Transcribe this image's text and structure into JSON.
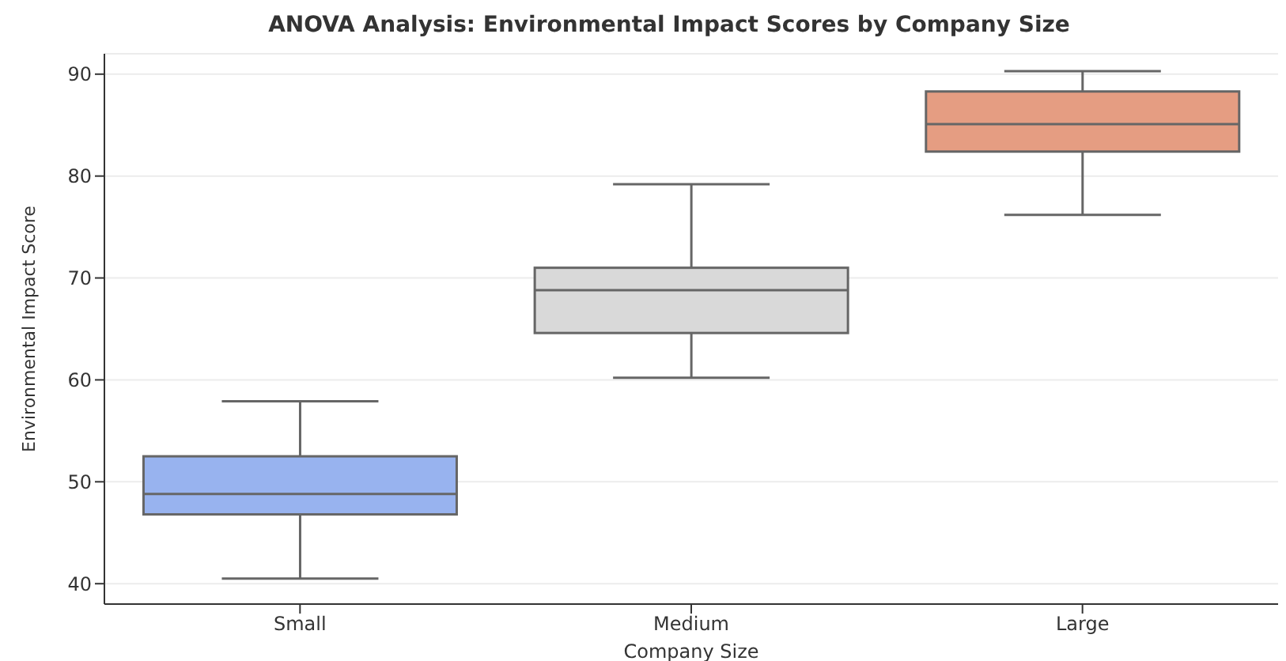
{
  "chart_data": {
    "type": "box",
    "title": "ANOVA Analysis: Environmental Impact Scores by Company Size",
    "xlabel": "Company Size",
    "ylabel": "Environmental Impact Score",
    "categories": [
      "Small",
      "Medium",
      "Large"
    ],
    "colors": [
      "#98b3ef",
      "#d9d9d9",
      "#e59d82"
    ],
    "boxes": [
      {
        "low": 40.5,
        "q1": 46.8,
        "median": 48.8,
        "q3": 52.5,
        "high": 57.9
      },
      {
        "low": 60.2,
        "q1": 64.6,
        "median": 68.8,
        "q3": 71.0,
        "high": 79.2
      },
      {
        "low": 76.2,
        "q1": 82.4,
        "median": 85.1,
        "q3": 88.3,
        "high": 90.3
      }
    ],
    "ylim": [
      38,
      92
    ],
    "yticks": [
      40,
      50,
      60,
      70,
      80,
      90
    ],
    "grid": "y",
    "legend": false
  }
}
